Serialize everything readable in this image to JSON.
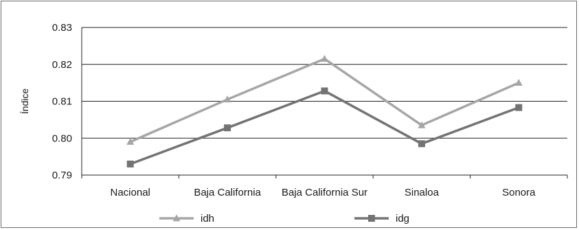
{
  "chart_data": {
    "type": "line",
    "categories": [
      "Nacional",
      "Baja California",
      "Baja California Sur",
      "Sinaloa",
      "Sonora"
    ],
    "series": [
      {
        "name": "idh",
        "values": [
          0.799,
          0.8105,
          0.8215,
          0.8035,
          0.815
        ],
        "color": "#a6a6a6",
        "marker": "triangle"
      },
      {
        "name": "idg",
        "values": [
          0.793,
          0.8028,
          0.8128,
          0.7985,
          0.8083
        ],
        "color": "#737373",
        "marker": "square"
      }
    ],
    "ylabel": "Índice",
    "xlabel": "",
    "ylim": [
      0.79,
      0.83
    ],
    "yticks": [
      "0.79",
      "0.80",
      "0.81",
      "0.82",
      "0.83"
    ],
    "grid": true,
    "legend_position": "bottom"
  }
}
